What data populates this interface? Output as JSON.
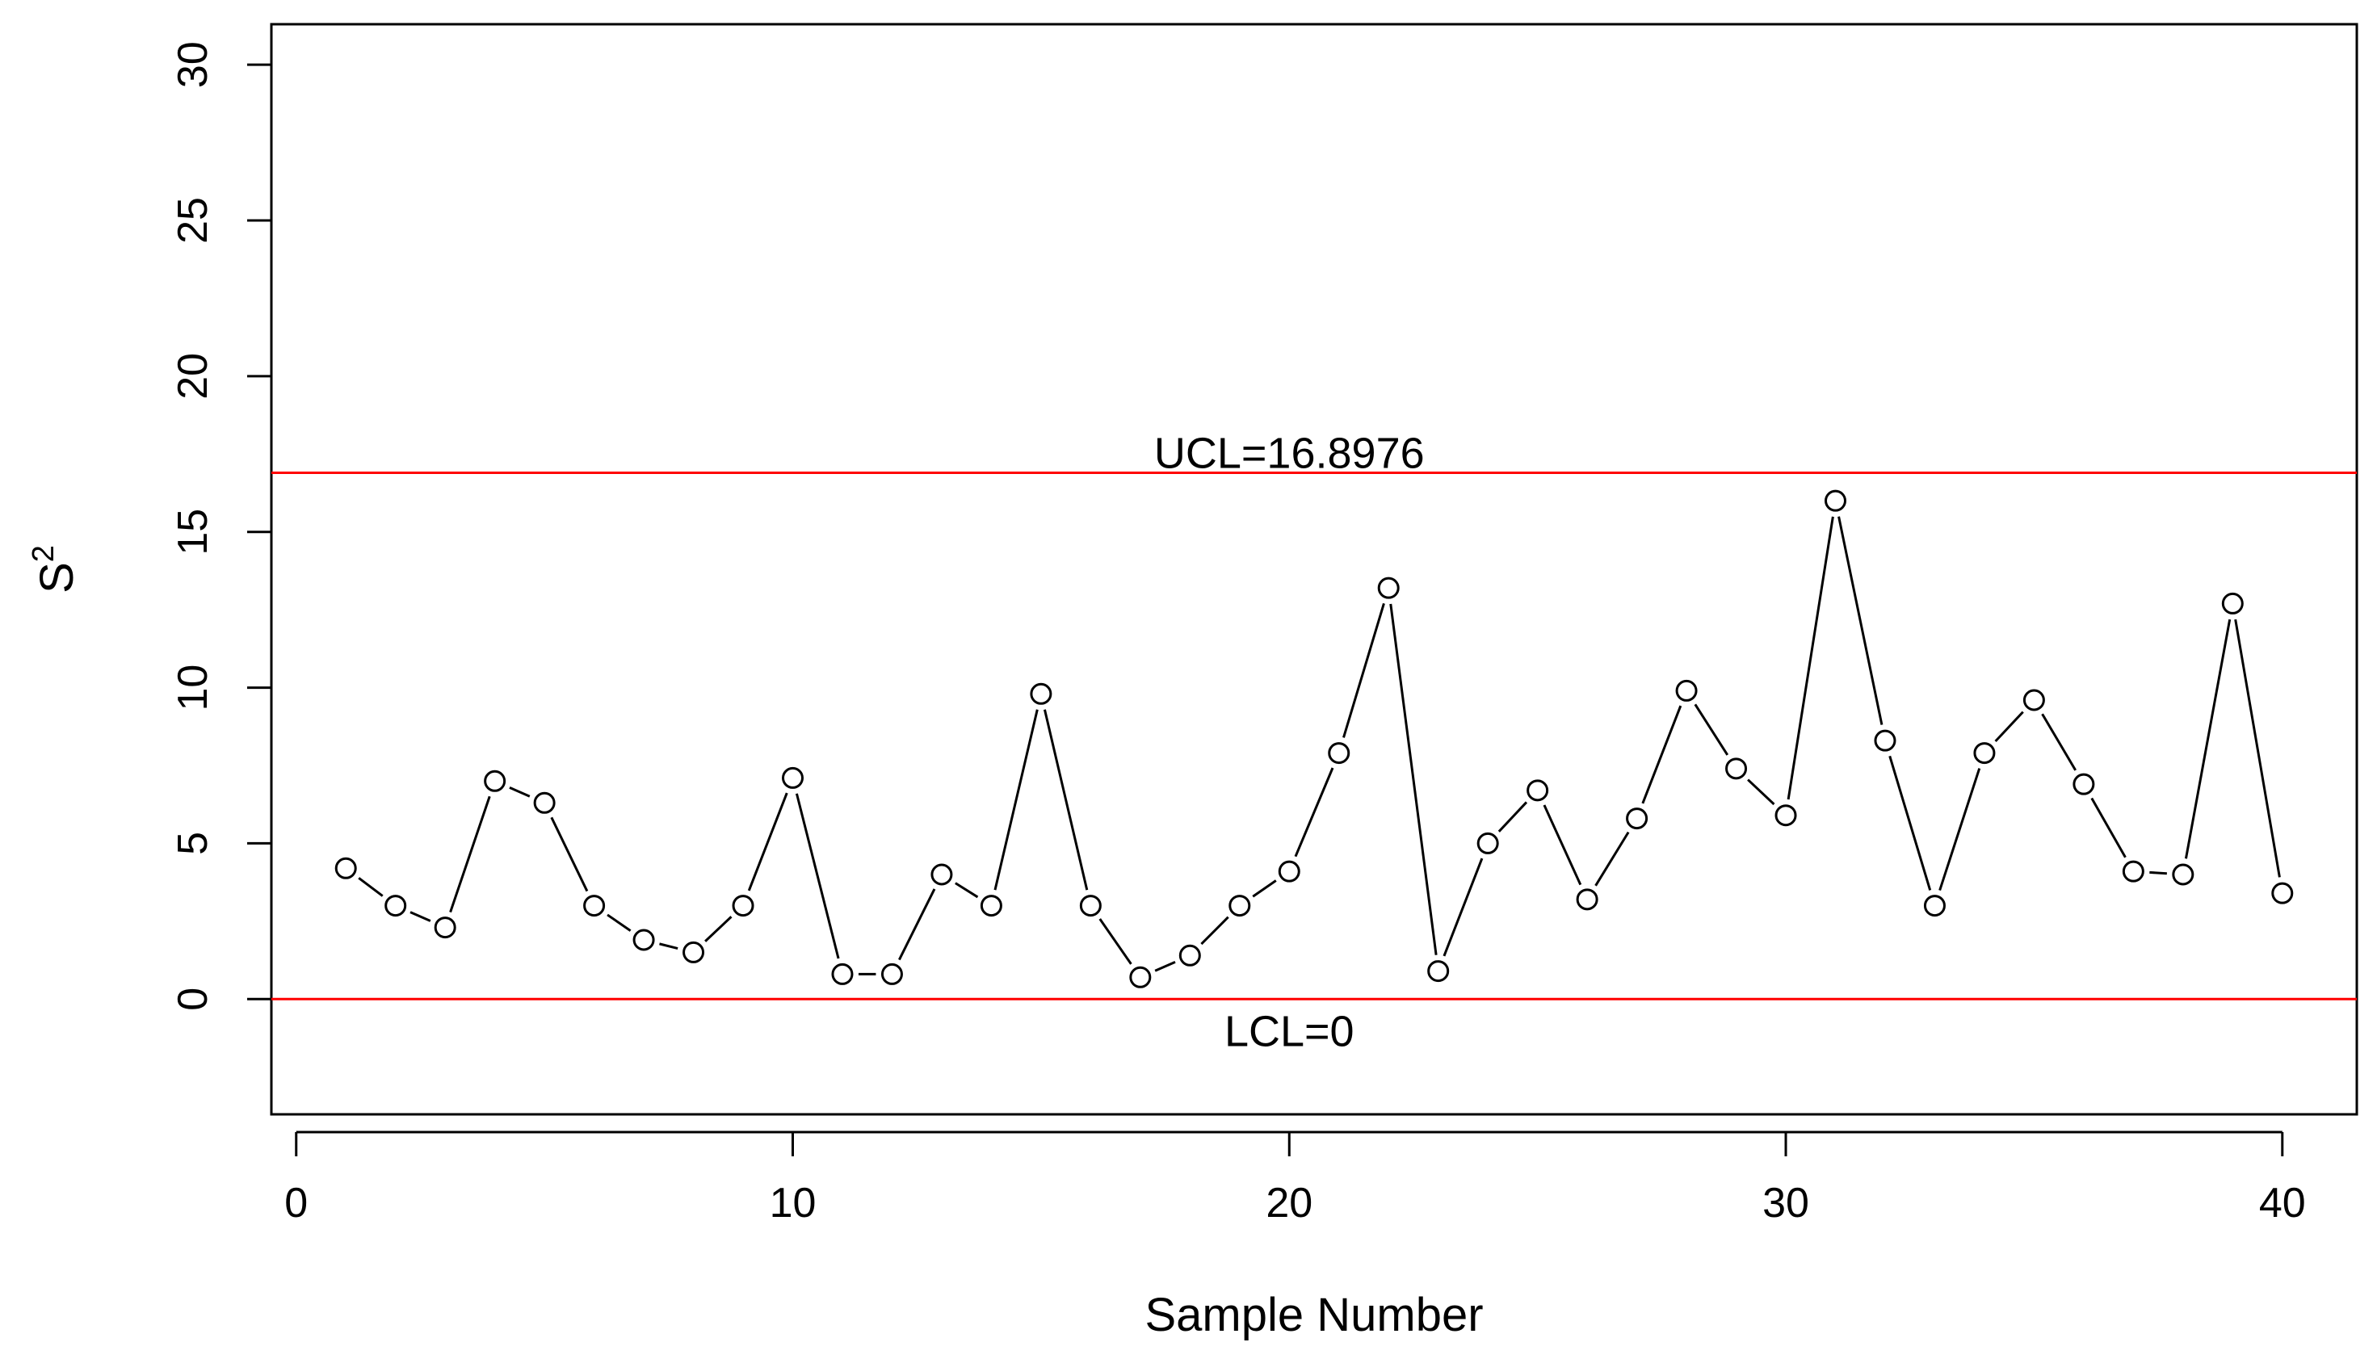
{
  "chart_data": {
    "type": "line",
    "title": "",
    "xlabel": "Sample Number",
    "ylabel_base": "S",
    "ylabel_superscript": "2",
    "xlim": [
      -0.5,
      41.5
    ],
    "ylim": [
      -3.7,
      31.3
    ],
    "xticks": [
      0,
      10,
      20,
      30,
      40
    ],
    "yticks": [
      0,
      5,
      10,
      15,
      20,
      25,
      30
    ],
    "grid": false,
    "series": [
      {
        "x": [
          1,
          2,
          3,
          4,
          5,
          6,
          7,
          8,
          9,
          10,
          11,
          12,
          13,
          14,
          15,
          16,
          17,
          18,
          19,
          20,
          21,
          22,
          23,
          24,
          25,
          26,
          27,
          28,
          29,
          30,
          31,
          32,
          33,
          34,
          35,
          36,
          37,
          38,
          39,
          40
        ],
        "values": [
          4.2,
          3.0,
          2.3,
          7.0,
          6.3,
          3.0,
          1.9,
          1.5,
          3.0,
          7.1,
          0.8,
          0.8,
          4.0,
          3.0,
          9.8,
          3.0,
          0.7,
          1.4,
          3.0,
          4.1,
          7.9,
          13.2,
          0.9,
          5.0,
          6.7,
          3.2,
          5.8,
          9.9,
          7.4,
          5.9,
          16.0,
          8.3,
          3.0,
          7.9,
          9.6,
          6.9,
          4.1,
          4.0,
          12.7,
          3.4
        ]
      }
    ],
    "control_lines": [
      {
        "label": "UCL=16.8976",
        "value": 16.8976,
        "color": "#ff0000"
      },
      {
        "label": "LCL=0",
        "value": 0,
        "color": "#ff0000"
      }
    ],
    "point_color": "#000000",
    "line_color": "#000000"
  }
}
